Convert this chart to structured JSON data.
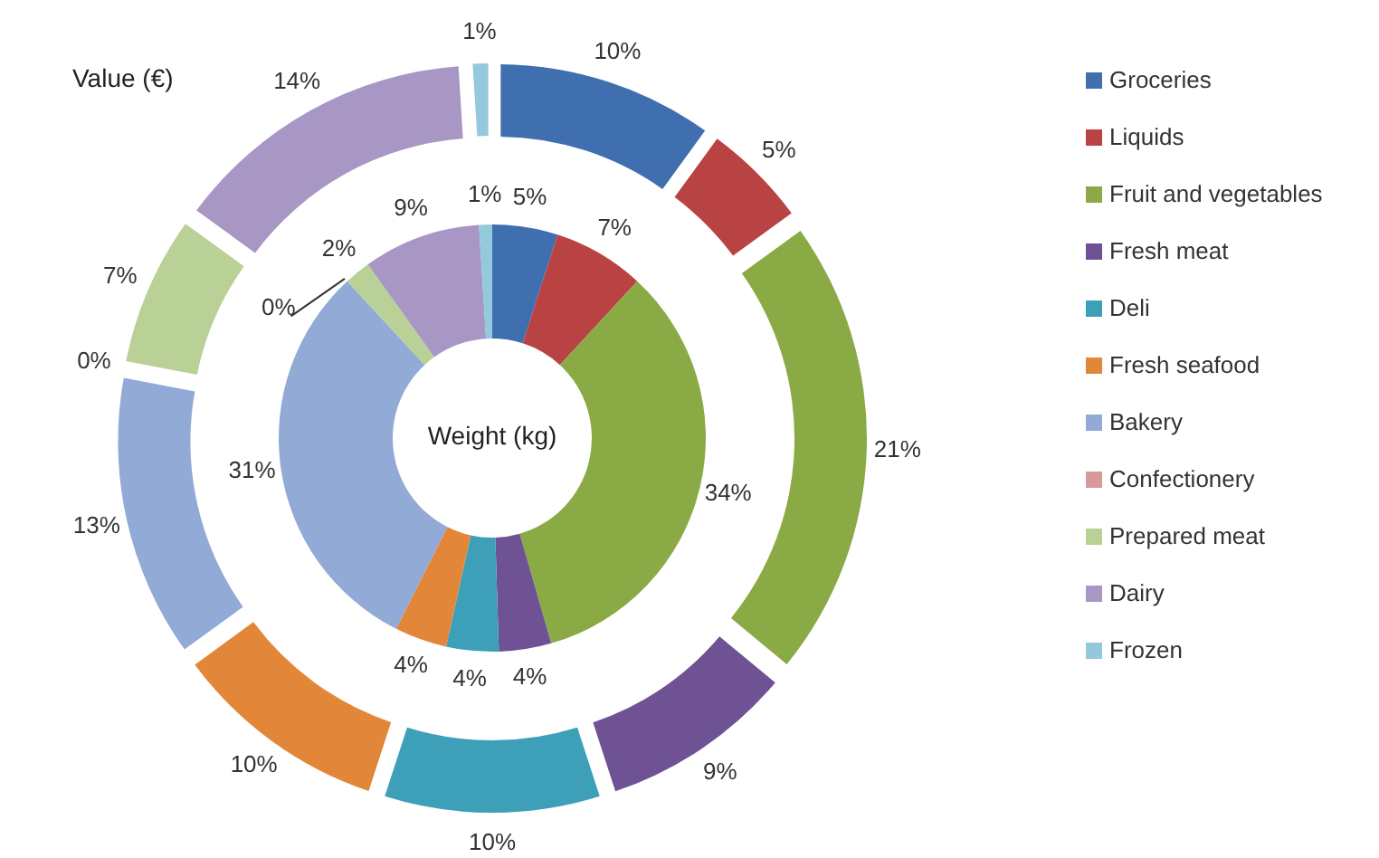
{
  "chart_data": [
    {
      "type": "donut",
      "title": "Weight (kg)",
      "categories": [
        null,
        null,
        null,
        null,
        null,
        null,
        null,
        null,
        null,
        null,
        null
      ],
      "values": [
        5,
        7,
        34,
        4,
        4,
        4,
        31,
        0,
        2,
        9,
        1
      ],
      "value_labels": [
        "5%",
        "7%",
        "34%",
        "4%",
        "4%",
        "4%",
        "31%",
        "0%",
        "2%",
        "9%",
        "1%"
      ],
      "colors": [
        "#3f6fae",
        "#b94242",
        "#8aaa45",
        "#6e5294",
        "#3ea0b8",
        "#e2873a",
        "#92aad6",
        "#d89a98",
        "#b9d196",
        "#a897c4",
        "#94c8dc"
      ]
    },
    {
      "type": "donut",
      "title": "Value (€)",
      "categories": [
        "Groceries",
        "Liquids",
        "Fruit and vegetables",
        "Fresh meat",
        "Deli",
        "Fresh seafood",
        "Bakery",
        "Confectionery",
        "Prepared meat",
        "Dairy",
        "Frozen"
      ],
      "values": [
        10,
        5,
        21,
        9,
        10,
        10,
        13,
        0,
        7,
        14,
        1
      ],
      "value_labels": [
        "10%",
        "5%",
        "21%",
        "9%",
        "10%",
        "10%",
        "13%",
        "0%",
        "7%",
        "14%",
        "1%"
      ],
      "colors": [
        "#3f6fae",
        "#b94242",
        "#8aaa45",
        "#6e5294",
        "#3ea0b8",
        "#e2873a",
        "#92aad6",
        "#d89a98",
        "#b9d196",
        "#a897c4",
        "#94c8dc"
      ],
      "legend": "right"
    }
  ]
}
